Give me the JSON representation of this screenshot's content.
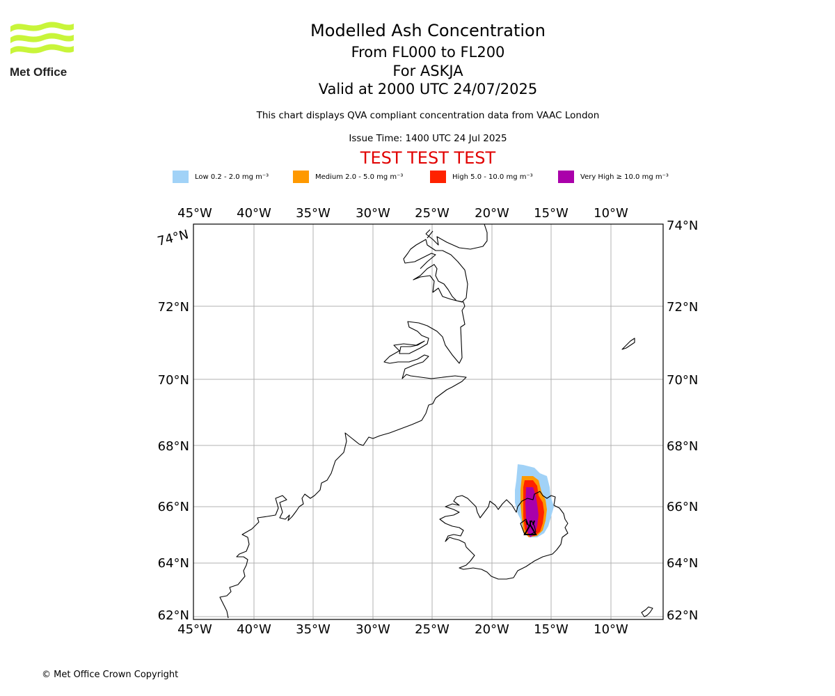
{
  "header": {
    "title": "Modelled Ash Concentration",
    "flight_levels": "From FL000 to FL200",
    "volcano_line": "For ASKJA",
    "valid_time": "Valid at 2000 UTC 24/07/2025",
    "description": "This chart displays QVA compliant concentration data from VAAC London",
    "issue_time": "Issue Time: 1400 UTC 24 Jul 2025",
    "test_banner": "TEST TEST TEST"
  },
  "logo": {
    "text": "Met Office",
    "color": "#c8f53a"
  },
  "legend": [
    {
      "label": "Low 0.2 - 2.0 mg m⁻³",
      "color": "#a1d2f7"
    },
    {
      "label": "Medium 2.0 - 5.0 mg m⁻³",
      "color": "#ff9900"
    },
    {
      "label": "High 5.0 - 10.0 mg m⁻³",
      "color": "#ff2200"
    },
    {
      "label": "Very High ≥ 10.0 mg m⁻³",
      "color": "#aa00aa"
    }
  ],
  "map": {
    "lon_labels": [
      "45°W",
      "40°W",
      "35°W",
      "30°W",
      "25°W",
      "20°W",
      "15°W",
      "10°W"
    ],
    "lat_labels": [
      "74°N",
      "72°N",
      "70°N",
      "68°N",
      "66°N",
      "64°N",
      "62°N"
    ],
    "volcano": "ASKJA"
  },
  "footer": {
    "copyright": "© Met Office Crown Copyright"
  }
}
